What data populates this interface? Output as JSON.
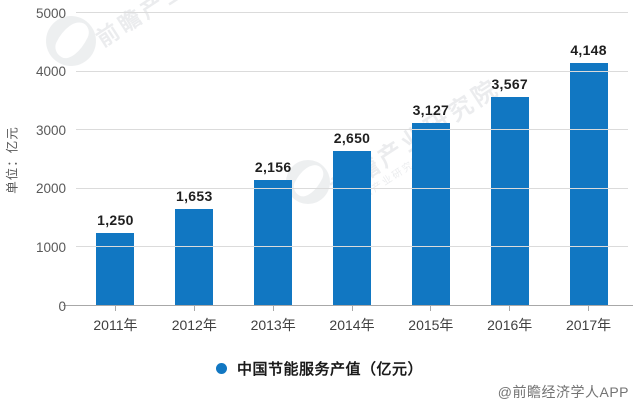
{
  "chart_data": {
    "type": "bar",
    "title": "",
    "categories": [
      "2011年",
      "2012年",
      "2013年",
      "2014年",
      "2015年",
      "2016年",
      "2017年"
    ],
    "values": [
      1250,
      1653,
      2156,
      2650,
      3127,
      3567,
      4148
    ],
    "value_labels": [
      "1,250",
      "1,653",
      "2,156",
      "2,650",
      "3,127",
      "3,567",
      "4,148"
    ],
    "series_name": "中国节能服务产值（亿元）",
    "xlabel": "",
    "ylabel": "单位：亿元",
    "ylim": [
      0,
      5000
    ],
    "yticks": [
      0,
      1000,
      2000,
      3000,
      4000,
      5000
    ],
    "grid": "horizontal",
    "legend_position": "bottom"
  },
  "legend": {
    "label": "中国节能服务产值（亿元）"
  },
  "footer": {
    "credit": "@前瞻经济学人APP"
  },
  "watermark": {
    "text": "前瞻产业研究院"
  },
  "colors": {
    "bar": "#1177C2",
    "legend_dot": "#1177C2",
    "gridline": "#DBDBDB",
    "axis": "#A8A8A8"
  }
}
